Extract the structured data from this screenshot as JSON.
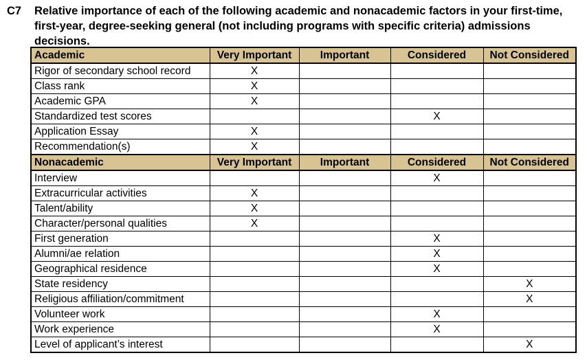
{
  "question": {
    "id": "C7",
    "text": "Relative importance of each of the following academic and nonacademic factors in your first-time, first-year, degree-seeking general (not including programs with specific criteria) admissions decisions."
  },
  "columns": [
    "Very Important",
    "Important",
    "Considered",
    "Not Considered"
  ],
  "mark": "X",
  "colors": {
    "header_bg": "#d8c492",
    "border": "#000000",
    "text": "#000000"
  },
  "sections": [
    {
      "header": "Academic",
      "rows": [
        {
          "label": "Rigor of secondary school record",
          "rating": "Very Important"
        },
        {
          "label": "Class rank",
          "rating": "Very Important"
        },
        {
          "label": "Academic GPA",
          "rating": "Very Important"
        },
        {
          "label": "Standardized test scores",
          "rating": "Considered"
        },
        {
          "label": "Application Essay",
          "rating": "Very Important"
        },
        {
          "label": "Recommendation(s)",
          "rating": "Very Important"
        }
      ]
    },
    {
      "header": "Nonacademic",
      "rows": [
        {
          "label": "Interview",
          "rating": "Considered"
        },
        {
          "label": "Extracurricular activities",
          "rating": "Very Important"
        },
        {
          "label": "Talent/ability",
          "rating": "Very Important"
        },
        {
          "label": "Character/personal qualities",
          "rating": "Very Important"
        },
        {
          "label": "First generation",
          "rating": "Considered"
        },
        {
          "label": "Alumni/ae relation",
          "rating": "Considered"
        },
        {
          "label": "Geographical residence",
          "rating": "Considered"
        },
        {
          "label": "State residency",
          "rating": "Not Considered"
        },
        {
          "label": "Religious affiliation/commitment",
          "rating": "Not Considered"
        },
        {
          "label": "Volunteer work",
          "rating": "Considered"
        },
        {
          "label": "Work experience",
          "rating": "Considered"
        },
        {
          "label": "Level of applicant’s interest",
          "rating": "Not Considered"
        }
      ]
    }
  ]
}
